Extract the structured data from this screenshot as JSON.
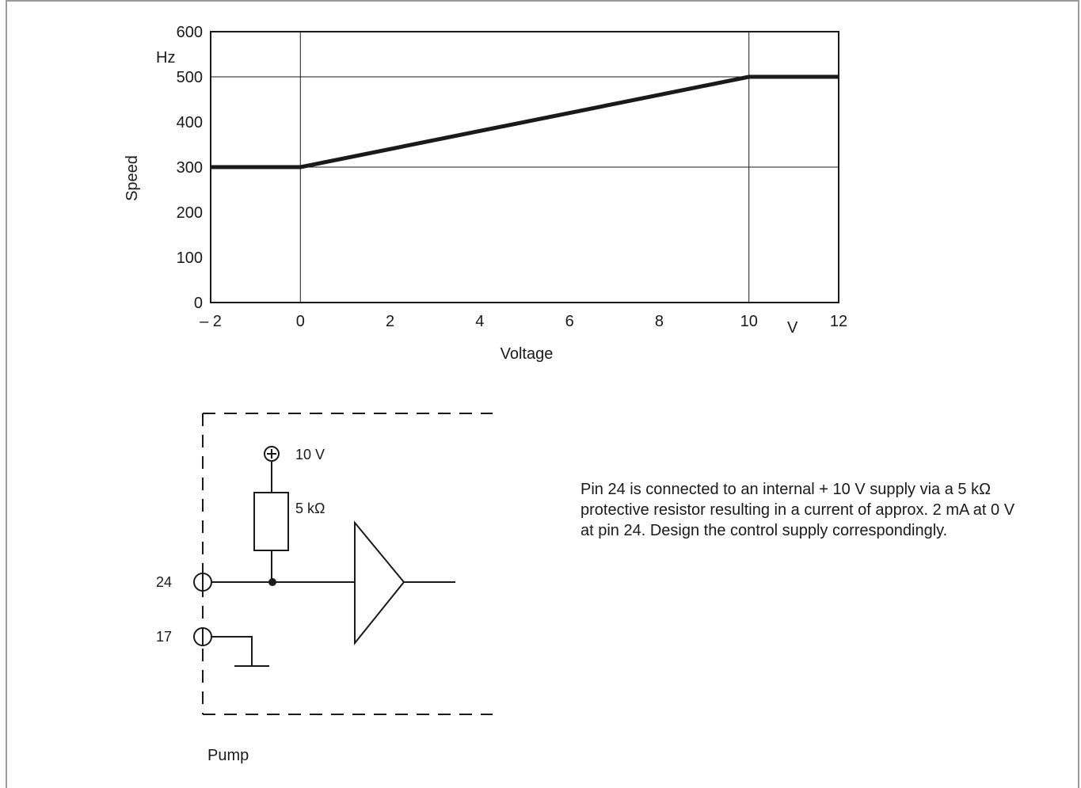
{
  "chart_data": {
    "type": "line",
    "xlabel": "Voltage",
    "x_unit": "V",
    "ylabel": "Speed",
    "y_unit": "Hz",
    "xlim": [
      -2,
      12
    ],
    "ylim": [
      0,
      600
    ],
    "x_ticks": [
      "– 2",
      "0",
      "2",
      "4",
      "6",
      "8",
      "10",
      "12"
    ],
    "y_ticks": [
      "0",
      "100",
      "200",
      "300",
      "400",
      "500",
      "600"
    ],
    "grid": true,
    "series": [
      {
        "x": [
          -2,
          0,
          10,
          12
        ],
        "y": [
          300,
          300,
          500,
          500
        ]
      }
    ]
  },
  "schematic": {
    "supply_label": "10 V",
    "resistor_label": "5 kΩ",
    "pin_24_label": "24",
    "pin_17_label": "17",
    "enclosure_label": "Pump"
  },
  "description": "Pin 24 is connected to an internal + 10 V supply via a 5 kΩ protective resistor resulting in a current of approx. 2 mA at 0 V at pin 24. Design the control supply correspondingly."
}
